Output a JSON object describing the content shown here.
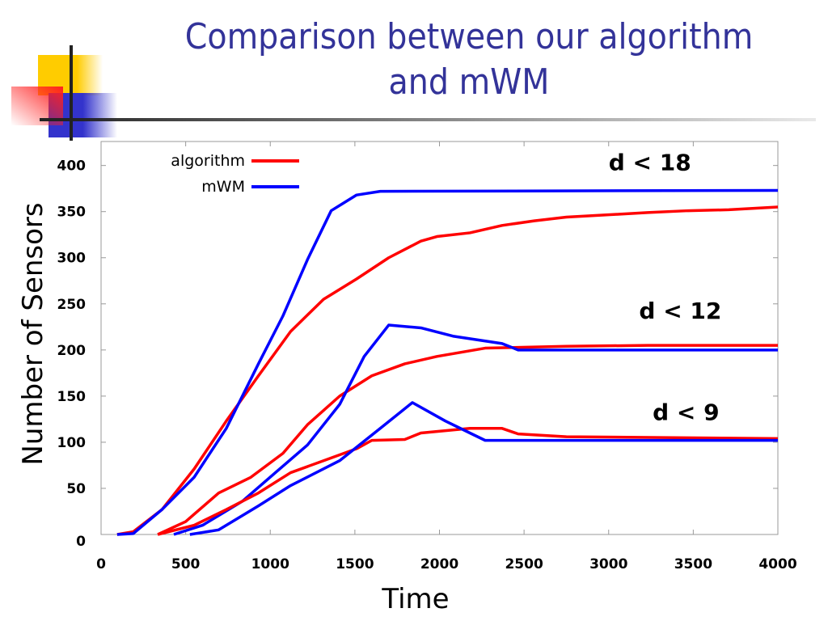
{
  "title_lines": [
    "Comparison between our algorithm",
    "and mWM"
  ],
  "chart_data": {
    "type": "line",
    "xlabel": "Time",
    "ylabel": "Number of Sensors",
    "xlim": [
      0,
      4000
    ],
    "ylim": [
      0,
      426
    ],
    "xticks": [
      0,
      500,
      1000,
      1500,
      2000,
      2500,
      3000,
      3500,
      4000
    ],
    "yticks": [
      0,
      50,
      100,
      150,
      200,
      250,
      300,
      350,
      400
    ],
    "grid": false,
    "legend_placement": "top-left",
    "legend": [
      {
        "name": "algorithm",
        "color": "#ff0000"
      },
      {
        "name": "mWM",
        "color": "#0000ff"
      }
    ],
    "annotations": [
      {
        "text": "d < 18",
        "x": 3000,
        "y": 395
      },
      {
        "text": "d < 12",
        "x": 3180,
        "y": 234
      },
      {
        "text": "d < 9",
        "x": 3260,
        "y": 124
      }
    ],
    "series": [
      {
        "legend": "algorithm",
        "group": "d < 18",
        "color": "#ff0000",
        "points": [
          [
            95,
            0
          ],
          [
            190,
            3
          ],
          [
            360,
            27
          ],
          [
            550,
            71
          ],
          [
            740,
            123
          ],
          [
            930,
            172
          ],
          [
            1120,
            220
          ],
          [
            1315,
            255
          ],
          [
            1510,
            277
          ],
          [
            1700,
            300
          ],
          [
            1890,
            318
          ],
          [
            1985,
            323
          ],
          [
            2180,
            327
          ],
          [
            2370,
            335
          ],
          [
            2560,
            340
          ],
          [
            2750,
            344
          ],
          [
            3040,
            347
          ],
          [
            3230,
            349
          ],
          [
            3470,
            351
          ],
          [
            3710,
            352
          ],
          [
            4000,
            355
          ]
        ]
      },
      {
        "legend": "mWM",
        "group": "d < 18",
        "color": "#0000ff",
        "points": [
          [
            95,
            0
          ],
          [
            190,
            1
          ],
          [
            360,
            27
          ],
          [
            550,
            62
          ],
          [
            740,
            115
          ],
          [
            930,
            185
          ],
          [
            1075,
            237
          ],
          [
            1220,
            298
          ],
          [
            1360,
            351
          ],
          [
            1510,
            368
          ],
          [
            1650,
            372
          ],
          [
            4000,
            373
          ]
        ]
      },
      {
        "legend": "algorithm",
        "group": "d < 12",
        "color": "#ff0000",
        "points": [
          [
            335,
            0
          ],
          [
            500,
            14
          ],
          [
            695,
            45
          ],
          [
            885,
            62
          ],
          [
            1075,
            88
          ],
          [
            1220,
            119
          ],
          [
            1410,
            150
          ],
          [
            1600,
            172
          ],
          [
            1795,
            185
          ],
          [
            1985,
            193
          ],
          [
            2270,
            202
          ],
          [
            2750,
            204
          ],
          [
            3230,
            205
          ],
          [
            4000,
            205
          ]
        ]
      },
      {
        "legend": "mWM",
        "group": "d < 12",
        "color": "#0000ff",
        "points": [
          [
            430,
            0
          ],
          [
            600,
            10
          ],
          [
            835,
            36
          ],
          [
            1030,
            67
          ],
          [
            1220,
            97
          ],
          [
            1410,
            141
          ],
          [
            1555,
            193
          ],
          [
            1700,
            227
          ],
          [
            1890,
            224
          ],
          [
            2080,
            215
          ],
          [
            2370,
            207
          ],
          [
            2465,
            200
          ],
          [
            4000,
            200
          ]
        ]
      },
      {
        "legend": "algorithm",
        "group": "d < 9",
        "color": "#ff0000",
        "points": [
          [
            335,
            0
          ],
          [
            550,
            10
          ],
          [
            740,
            27
          ],
          [
            930,
            45
          ],
          [
            1120,
            67
          ],
          [
            1315,
            80
          ],
          [
            1510,
            93
          ],
          [
            1600,
            102
          ],
          [
            1795,
            103
          ],
          [
            1890,
            110
          ],
          [
            2180,
            115
          ],
          [
            2370,
            115
          ],
          [
            2465,
            109
          ],
          [
            2750,
            106
          ],
          [
            4000,
            104
          ]
        ]
      },
      {
        "legend": "mWM",
        "group": "d < 9",
        "color": "#0000ff",
        "points": [
          [
            525,
            0
          ],
          [
            695,
            5
          ],
          [
            930,
            31
          ],
          [
            1120,
            53
          ],
          [
            1410,
            80
          ],
          [
            1650,
            115
          ],
          [
            1840,
            143
          ],
          [
            2035,
            123
          ],
          [
            2180,
            110
          ],
          [
            2270,
            102
          ],
          [
            4000,
            102
          ]
        ]
      }
    ]
  }
}
